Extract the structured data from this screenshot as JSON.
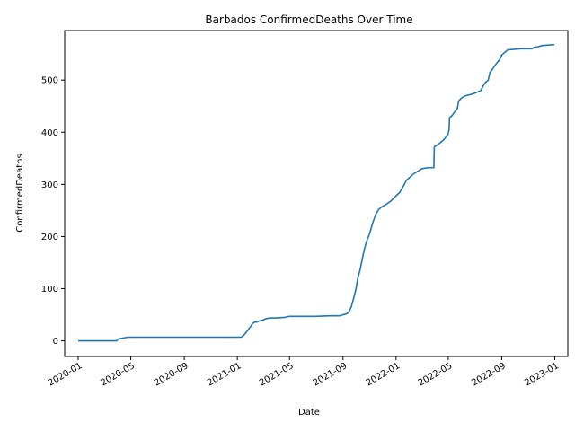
{
  "chart_data": {
    "type": "line",
    "title": "Barbados  ConfirmedDeaths Over Time",
    "xlabel": "Date",
    "ylabel": "ConfirmedDeaths",
    "x_range": [
      "2019-12-01",
      "2023-01-31"
    ],
    "ylim": [
      -30,
      595
    ],
    "grid": false,
    "legend": "none",
    "colors": {
      "line": "#1f77b4"
    },
    "x_ticks": [
      "2020-01",
      "2020-05",
      "2020-09",
      "2021-01",
      "2021-05",
      "2021-09",
      "2022-01",
      "2022-05",
      "2022-09",
      "2023-01"
    ],
    "y_ticks": [
      0,
      100,
      200,
      300,
      400,
      500
    ],
    "series": [
      {
        "x": [
          "2020-01-01",
          "2020-03-30",
          "2020-04-01",
          "2020-04-10",
          "2020-04-25",
          "2020-06-01",
          "2020-08-01",
          "2020-10-01",
          "2020-12-01",
          "2021-01-05",
          "2021-01-10",
          "2021-01-15",
          "2021-01-20",
          "2021-01-25",
          "2021-02-01",
          "2021-02-05",
          "2021-02-10",
          "2021-02-15",
          "2021-02-20",
          "2021-03-01",
          "2021-03-10",
          "2021-03-20",
          "2021-04-01",
          "2021-04-20",
          "2021-05-01",
          "2021-05-10",
          "2021-06-01",
          "2021-07-01",
          "2021-08-01",
          "2021-08-25",
          "2021-09-01",
          "2021-09-10",
          "2021-09-15",
          "2021-09-20",
          "2021-09-25",
          "2021-10-01",
          "2021-10-05",
          "2021-10-10",
          "2021-10-15",
          "2021-10-20",
          "2021-10-25",
          "2021-11-01",
          "2021-11-08",
          "2021-11-15",
          "2021-11-22",
          "2021-11-28",
          "2021-12-01",
          "2021-12-10",
          "2021-12-20",
          "2022-01-01",
          "2022-01-10",
          "2022-01-20",
          "2022-01-25",
          "2022-02-01",
          "2022-02-10",
          "2022-02-20",
          "2022-03-01",
          "2022-03-15",
          "2022-03-29",
          "2022-03-30",
          "2022-04-10",
          "2022-04-20",
          "2022-04-30",
          "2022-05-03",
          "2022-05-04",
          "2022-05-10",
          "2022-05-15",
          "2022-05-22",
          "2022-05-25",
          "2022-06-01",
          "2022-06-10",
          "2022-06-20",
          "2022-07-01",
          "2022-07-10",
          "2022-07-15",
          "2022-07-20",
          "2022-07-25",
          "2022-08-01",
          "2022-08-05",
          "2022-08-10",
          "2022-08-20",
          "2022-08-25",
          "2022-08-28",
          "2022-09-01",
          "2022-09-15",
          "2022-10-01",
          "2022-10-15",
          "2022-11-01",
          "2022-11-10",
          "2022-11-15",
          "2022-11-25",
          "2022-12-01",
          "2022-12-31"
        ],
        "y": [
          0,
          0,
          3,
          5,
          7,
          7,
          7,
          7,
          7,
          7,
          7,
          10,
          15,
          20,
          28,
          33,
          36,
          36,
          38,
          40,
          43,
          44,
          44,
          45,
          47,
          47,
          47,
          47,
          48,
          48,
          50,
          52,
          56,
          65,
          80,
          100,
          120,
          135,
          155,
          175,
          190,
          205,
          225,
          242,
          252,
          256,
          258,
          262,
          268,
          278,
          285,
          300,
          308,
          313,
          320,
          325,
          330,
          332,
          332,
          372,
          378,
          385,
          395,
          405,
          428,
          432,
          438,
          445,
          460,
          466,
          470,
          472,
          475,
          478,
          480,
          488,
          495,
          500,
          515,
          520,
          532,
          537,
          540,
          548,
          558,
          559,
          560,
          560,
          560,
          563,
          564,
          566,
          568
        ]
      }
    ]
  }
}
